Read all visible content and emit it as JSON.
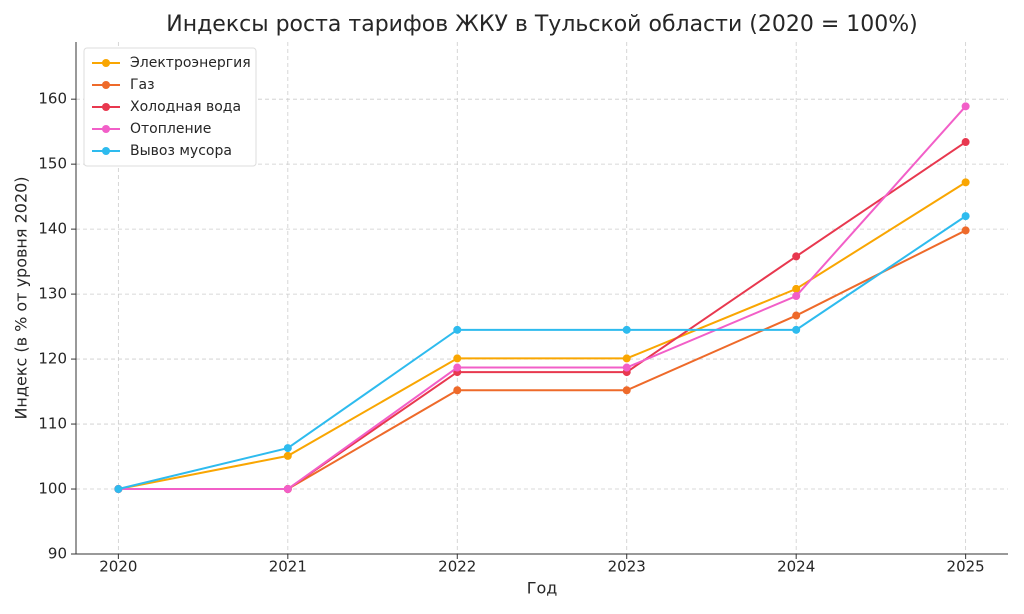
{
  "chart_data": {
    "type": "line",
    "title": "Индексы роста тарифов ЖКУ в Тульской области (2020 = 100%)",
    "x_label": "Год",
    "y_label": "Индекс (в % от уровня 2020)",
    "x": [
      2020,
      2021,
      2022,
      2023,
      2024,
      2025
    ],
    "series": [
      {
        "name": "Электроэнергия",
        "color": "#f9a602",
        "values": [
          100,
          105.1,
          120.1,
          120.1,
          130.8,
          147.2
        ]
      },
      {
        "name": "Газ",
        "color": "#ee6a2a",
        "values": [
          100,
          100,
          115.2,
          115.2,
          126.7,
          139.8
        ]
      },
      {
        "name": "Холодная вода",
        "color": "#e8384f",
        "values": [
          100,
          100,
          118,
          118,
          135.8,
          153.4
        ]
      },
      {
        "name": "Отопление",
        "color": "#f25fc8",
        "values": [
          100,
          100,
          118.7,
          118.7,
          129.7,
          158.9
        ]
      },
      {
        "name": "Вывоз мусора",
        "color": "#2ebbee",
        "values": [
          100,
          106.3,
          124.5,
          124.5,
          124.5,
          142
        ]
      }
    ],
    "xlim": [
      2019.75,
      2025.25
    ],
    "xticks": [
      2020,
      2021,
      2022,
      2023,
      2024,
      2025
    ],
    "ylim": [
      90,
      168.8
    ],
    "yticks": [
      90,
      100,
      110,
      120,
      130,
      140,
      150,
      160
    ],
    "grid": true,
    "legend": "upper-left"
  }
}
